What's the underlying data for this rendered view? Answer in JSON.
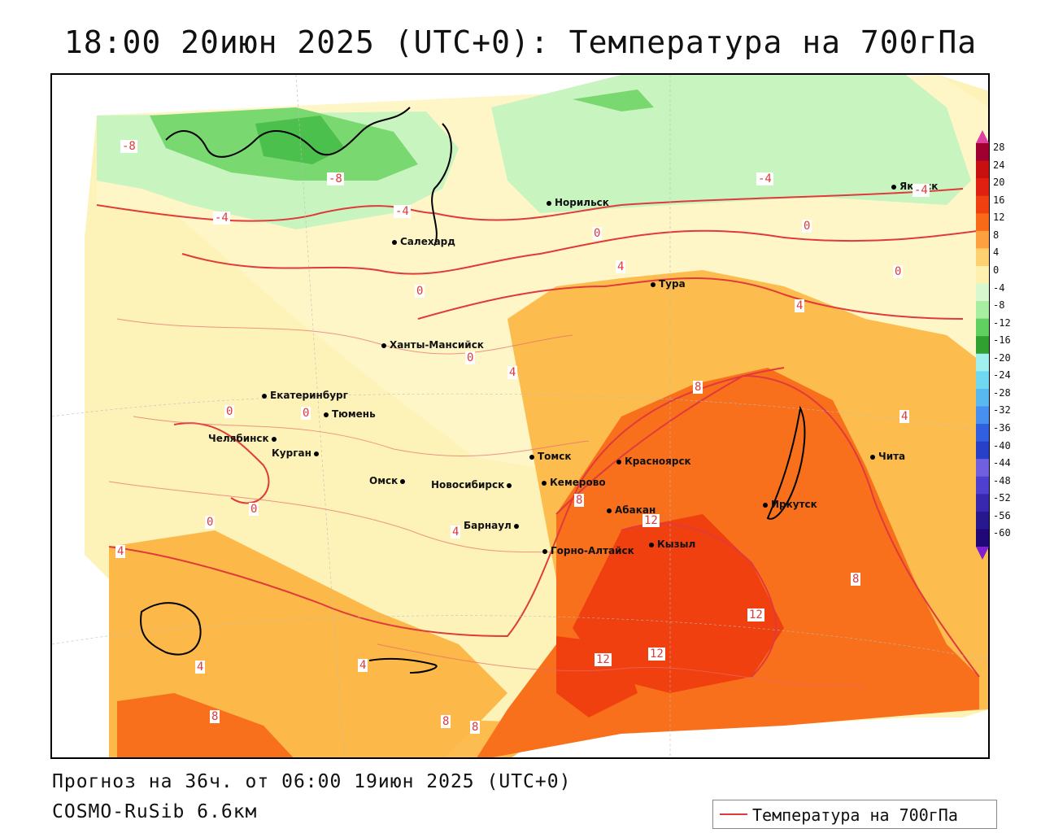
{
  "header": {
    "title": "18:00 20июн 2025 (UTC+0): Температура на 700гПа"
  },
  "footer": {
    "forecast": "Прогноз на 36ч. от 06:00 19июн 2025 (UTC+0)",
    "model": "COSMO-RuSib 6.6км"
  },
  "legend": {
    "label": "Температура на 700гПа",
    "color": "#e03a3a"
  },
  "colorbar": {
    "labels": [
      "28",
      "24",
      "20",
      "16",
      "12",
      "8",
      "4",
      "0",
      "-4",
      "-8",
      "-12",
      "-16",
      "-20",
      "-24",
      "-28",
      "-32",
      "-36",
      "-40",
      "-44",
      "-48",
      "-52",
      "-56",
      "-60"
    ],
    "colors": [
      "#a00030",
      "#c81010",
      "#e02010",
      "#f04010",
      "#f86a18",
      "#fca040",
      "#fdd070",
      "#fff0b0",
      "#d8f8d0",
      "#a8eea0",
      "#60d060",
      "#30a030",
      "#a0f0f0",
      "#70d8f0",
      "#58b8f0",
      "#4890f0",
      "#3060e0",
      "#2840c8",
      "#7060e0",
      "#5040d0",
      "#3828b0",
      "#281890",
      "#200878"
    ],
    "top_color": "#e040a0",
    "bottom_color": "#8020d0"
  },
  "cities": [
    {
      "name": "Якутск"
    },
    {
      "name": "Норильск"
    },
    {
      "name": "Салехард"
    },
    {
      "name": "Тура"
    },
    {
      "name": "Ханты-Мансийск"
    },
    {
      "name": "Екатеринбург"
    },
    {
      "name": "Тюмень"
    },
    {
      "name": "Челябинск"
    },
    {
      "name": "Курган"
    },
    {
      "name": "Омск"
    },
    {
      "name": "Новосибирск"
    },
    {
      "name": "Томск"
    },
    {
      "name": "Кемерово"
    },
    {
      "name": "Красноярск"
    },
    {
      "name": "Барнаул"
    },
    {
      "name": "Абакан"
    },
    {
      "name": "Горно-Алтайск"
    },
    {
      "name": "Кызыл"
    },
    {
      "name": "Иркутск"
    },
    {
      "name": "Чита"
    }
  ],
  "contour_labels": [
    "-8",
    "-8",
    "-4",
    "-4",
    "-4",
    "-4",
    "0",
    "0",
    "0",
    "0",
    "0",
    "0",
    "0",
    "0",
    "0",
    "4",
    "4",
    "4",
    "4",
    "4",
    "4",
    "4",
    "4",
    "8",
    "8",
    "8",
    "8",
    "8",
    "8",
    "12",
    "12",
    "12",
    "12"
  ]
}
